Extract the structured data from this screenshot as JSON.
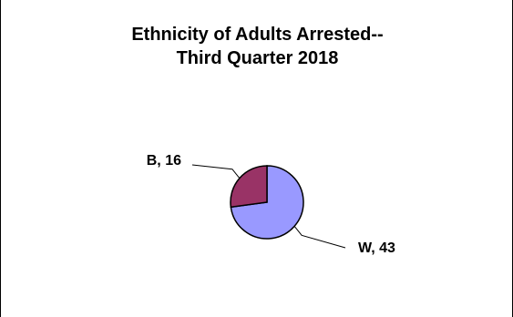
{
  "chart_data": {
    "type": "pie",
    "title_lines": [
      "Ethnicity of Adults Arrested--",
      "Third Quarter 2018"
    ],
    "slices": [
      {
        "label": "W",
        "value": 43,
        "color": "#9999ff"
      },
      {
        "label": "B",
        "value": 16,
        "color": "#993366"
      }
    ],
    "legend": "none"
  }
}
